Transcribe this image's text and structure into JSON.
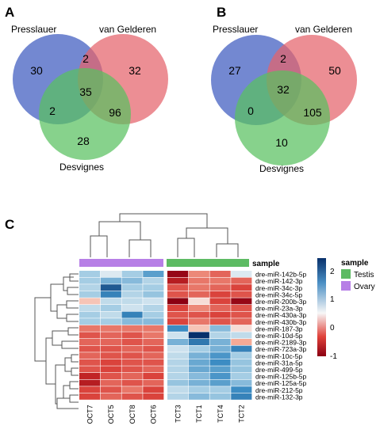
{
  "panels": {
    "a": {
      "letter": "A",
      "sets": [
        "Presslauer",
        "van Gelderen",
        "Desvignes"
      ],
      "counts": {
        "p_only": "30",
        "pv": "2",
        "v_only": "32",
        "all": "35",
        "pd": "2",
        "vd": "96",
        "d_only": "28"
      }
    },
    "b": {
      "letter": "B",
      "sets": [
        "Presslauer",
        "van Gelderen",
        "Desvignes"
      ],
      "counts": {
        "p_only": "27",
        "pv": "2",
        "v_only": "50",
        "all": "32",
        "pd": "0",
        "vd": "105",
        "d_only": "10"
      }
    },
    "c": {
      "letter": "C",
      "annotation_label": "sample",
      "legend_sample_title": "sample",
      "legend_items": [
        {
          "label": "Testis",
          "color": "#5dbb63"
        },
        {
          "label": "Ovary",
          "color": "#b77fe6"
        }
      ],
      "colorbar_ticks": [
        "2",
        "1",
        "0",
        "-1"
      ]
    }
  },
  "colors": {
    "venn_presslauer": "#5b73c9",
    "venn_vangelderen": "#e5636b",
    "venn_desvignes": "#59c15f",
    "heat_high": "#08306b",
    "heat_mid": "#f7f7f7",
    "heat_low": "#8b0012"
  },
  "chart_data": {
    "type": "heatmap",
    "columns": [
      "OCT7",
      "OCT5",
      "OCT8",
      "OCT6",
      "TCT3",
      "TCT1",
      "TCT4",
      "TCT2"
    ],
    "column_groups": [
      "Ovary",
      "Ovary",
      "Ovary",
      "Ovary",
      "Testis",
      "Testis",
      "Testis",
      "Testis"
    ],
    "rows": [
      "dre-miR-142b-5p",
      "dre-miR-142-3p",
      "dre-miR-34c-3p",
      "dre-miR-34c-5p",
      "dre-miR-200b-3p",
      "dre-miR-23a-3p",
      "dre-miR-430a-3p",
      "dre-miR-430b-3p",
      "dre-miR-187-3p",
      "dre-miR-10d-5p",
      "dre-miR-2189-3p",
      "dre-miR-723a-3p",
      "dre-miR-10c-5p",
      "dre-miR-31a-5p",
      "dre-miR-499-5p",
      "dre-miR-125b-5p",
      "dre-miR-125a-5p",
      "dre-miR-212-5p",
      "dre-miR-132-3p"
    ],
    "values": [
      [
        0.6,
        0.2,
        0.6,
        1.1,
        -1.6,
        -0.5,
        -0.7,
        0.2
      ],
      [
        0.6,
        0.9,
        0.8,
        0.5,
        -1.3,
        -0.6,
        -0.6,
        -0.7
      ],
      [
        0.5,
        1.8,
        0.6,
        0.6,
        -0.8,
        -0.6,
        -0.7,
        -0.9
      ],
      [
        0.6,
        1.4,
        0.5,
        0.7,
        -0.8,
        -0.7,
        -0.9,
        -0.8
      ],
      [
        -0.2,
        0.4,
        0.4,
        0.3,
        -1.7,
        -0.1,
        -0.9,
        -1.6
      ],
      [
        0.4,
        0.6,
        0.3,
        0.5,
        -0.9,
        -0.5,
        -0.7,
        -0.8
      ],
      [
        0.6,
        0.4,
        1.4,
        0.6,
        -0.8,
        -0.8,
        -0.9,
        -0.8
      ],
      [
        0.6,
        0.6,
        0.8,
        0.8,
        -0.9,
        -0.6,
        -0.8,
        -0.7
      ],
      [
        -0.6,
        -0.6,
        -0.6,
        -0.6,
        1.3,
        -0.2,
        0.8,
        -0.1
      ],
      [
        -0.8,
        -0.7,
        -0.8,
        -0.6,
        0.3,
        2.2,
        0.5,
        0.4
      ],
      [
        -0.7,
        -0.7,
        -0.8,
        -0.7,
        0.9,
        1.5,
        0.9,
        -0.3
      ],
      [
        -0.8,
        -0.8,
        -0.7,
        -0.8,
        0.3,
        0.6,
        0.9,
        1.4
      ],
      [
        -0.7,
        -0.8,
        -0.8,
        -0.7,
        0.4,
        0.9,
        1.2,
        0.6
      ],
      [
        -0.8,
        -0.9,
        -0.8,
        -0.8,
        0.5,
        1.0,
        1.3,
        0.7
      ],
      [
        -0.8,
        -0.9,
        -0.8,
        -0.7,
        0.5,
        1.0,
        1.1,
        0.7
      ],
      [
        -1.2,
        -0.8,
        -0.7,
        -0.9,
        0.5,
        0.8,
        1.2,
        0.6
      ],
      [
        -1.3,
        -0.7,
        -0.8,
        -0.7,
        0.7,
        0.9,
        1.1,
        0.8
      ],
      [
        -0.9,
        -0.8,
        -0.6,
        -0.9,
        0.4,
        0.6,
        0.6,
        1.3
      ],
      [
        -0.9,
        -0.7,
        -0.8,
        -0.9,
        0.5,
        0.8,
        0.7,
        1.4
      ]
    ],
    "value_range": [
      -1.7,
      2.2
    ]
  }
}
